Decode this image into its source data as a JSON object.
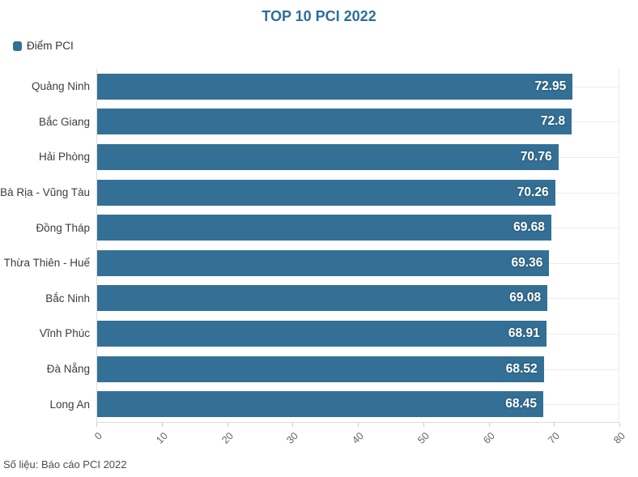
{
  "title": "TOP 10 PCI 2022",
  "legend": {
    "label": "Điểm PCI"
  },
  "footer": "Số liệu: Báo cáo PCI 2022",
  "colors": {
    "bar": "#347095",
    "title": "#2c6e9c",
    "axis_line": "#dddddd",
    "gridline": "#ececec",
    "tick_text": "#666666",
    "category_text": "#3d3d3d",
    "value_text": "#ffffff"
  },
  "chart_data": {
    "type": "bar",
    "orientation": "horizontal",
    "title": "TOP 10 PCI 2022",
    "series_name": "Điểm PCI",
    "categories": [
      "Quảng Ninh",
      "Bắc Giang",
      "Hải Phòng",
      "Bà Rịa - Vũng Tàu",
      "Đồng Tháp",
      "Thừa Thiên - Huế",
      "Bắc Ninh",
      "Vĩnh Phúc",
      "Đà Nẵng",
      "Long An"
    ],
    "values": [
      72.95,
      72.8,
      70.76,
      70.26,
      69.68,
      69.36,
      69.08,
      68.91,
      68.52,
      68.45
    ],
    "xlim": [
      0,
      80
    ],
    "x_ticks": [
      0,
      10,
      20,
      30,
      40,
      50,
      60,
      70,
      80
    ],
    "grid": true,
    "legend_position": "top-left",
    "source_note": "Số liệu: Báo cáo PCI 2022"
  }
}
